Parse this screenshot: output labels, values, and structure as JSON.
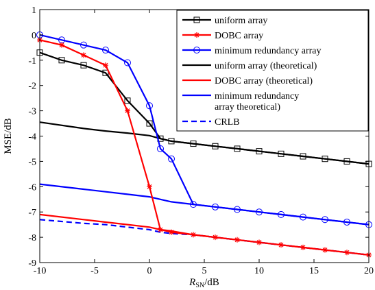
{
  "chart_data": {
    "type": "line",
    "xlabel_main": "R",
    "xlabel_sub": "SN",
    "xlabel_unit": "/dB",
    "ylabel": "MSE/dB",
    "xlim": [
      -10,
      20
    ],
    "ylim": [
      -9,
      1
    ],
    "xticks": [
      -10,
      -5,
      0,
      5,
      10,
      15,
      20
    ],
    "yticks": [
      1,
      0,
      -1,
      -2,
      -3,
      -4,
      -5,
      -6,
      -7,
      -8,
      -9
    ],
    "grid": false,
    "legend_position": "top-right",
    "series": [
      {
        "name": "uniform array",
        "color": "#000000",
        "marker": "square",
        "dash": "solid",
        "x": [
          -10,
          -8,
          -6,
          -4,
          -2,
          0,
          1,
          2,
          4,
          6,
          8,
          10,
          12,
          14,
          16,
          18,
          20
        ],
        "y": [
          -0.7,
          -1.0,
          -1.2,
          -1.5,
          -2.6,
          -3.5,
          -4.1,
          -4.2,
          -4.3,
          -4.4,
          -4.5,
          -4.6,
          -4.7,
          -4.8,
          -4.9,
          -5.0,
          -5.1
        ]
      },
      {
        "name": "DOBC array",
        "color": "#ff0000",
        "marker": "star",
        "dash": "solid",
        "x": [
          -10,
          -8,
          -6,
          -4,
          -2,
          0,
          1,
          2,
          4,
          6,
          8,
          10,
          12,
          14,
          16,
          18,
          20
        ],
        "y": [
          -0.2,
          -0.4,
          -0.8,
          -1.2,
          -3.0,
          -6.0,
          -7.7,
          -7.8,
          -7.9,
          -8.0,
          -8.1,
          -8.2,
          -8.3,
          -8.4,
          -8.5,
          -8.6,
          -8.7
        ]
      },
      {
        "name": "minimum redundancy array",
        "color": "#0000ff",
        "marker": "circle",
        "dash": "solid",
        "x": [
          -10,
          -8,
          -6,
          -4,
          -2,
          0,
          1,
          2,
          4,
          6,
          8,
          10,
          12,
          14,
          16,
          18,
          20
        ],
        "y": [
          0.0,
          -0.2,
          -0.4,
          -0.6,
          -1.1,
          -2.8,
          -4.5,
          -4.9,
          -6.7,
          -6.8,
          -6.9,
          -7.0,
          -7.1,
          -7.2,
          -7.3,
          -7.4,
          -7.5
        ]
      },
      {
        "name": "uniform array (theoretical)",
        "color": "#000000",
        "marker": "none",
        "dash": "solid",
        "x": [
          -10,
          -6,
          -4,
          -2,
          0,
          1,
          2,
          4,
          6,
          8,
          10,
          12,
          14,
          16,
          18,
          20
        ],
        "y": [
          -3.45,
          -3.7,
          -3.8,
          -3.88,
          -3.98,
          -4.1,
          -4.2,
          -4.3,
          -4.4,
          -4.5,
          -4.6,
          -4.7,
          -4.8,
          -4.9,
          -5.0,
          -5.1
        ]
      },
      {
        "name": "DOBC array (theoretical)",
        "color": "#ff0000",
        "marker": "none",
        "dash": "solid",
        "x": [
          -10,
          -6,
          -4,
          -2,
          0,
          1,
          2,
          4,
          6,
          8,
          10,
          12,
          14,
          16,
          18,
          20
        ],
        "y": [
          -7.1,
          -7.3,
          -7.4,
          -7.5,
          -7.6,
          -7.7,
          -7.75,
          -7.9,
          -8.0,
          -8.1,
          -8.2,
          -8.3,
          -8.4,
          -8.5,
          -8.6,
          -8.7
        ]
      },
      {
        "name": "minimum redundancy array theoretical)",
        "color": "#0000ff",
        "marker": "none",
        "dash": "solid",
        "x": [
          -10,
          -6,
          -4,
          -2,
          0,
          1,
          2,
          4,
          6,
          8,
          10,
          12,
          14,
          16,
          18,
          20
        ],
        "y": [
          -5.9,
          -6.1,
          -6.2,
          -6.3,
          -6.4,
          -6.5,
          -6.6,
          -6.7,
          -6.8,
          -6.9,
          -7.0,
          -7.1,
          -7.2,
          -7.3,
          -7.4,
          -7.5
        ]
      },
      {
        "name": "CRLB",
        "color": "#0000ff",
        "marker": "none",
        "dash": "dashed",
        "x": [
          -10,
          -6,
          -4,
          -2,
          0,
          1,
          2,
          4,
          6,
          8,
          10,
          12,
          14,
          16,
          18,
          20
        ],
        "y": [
          -7.3,
          -7.45,
          -7.5,
          -7.6,
          -7.7,
          -7.8,
          -7.85,
          -7.9,
          -8.0,
          -8.1,
          -8.2,
          -8.3,
          -8.4,
          -8.5,
          -8.6,
          -8.7
        ]
      }
    ],
    "legend": [
      {
        "lines": [
          "uniform array"
        ],
        "series_index": 0
      },
      {
        "lines": [
          "DOBC array"
        ],
        "series_index": 1
      },
      {
        "lines": [
          "minimum redundancy array"
        ],
        "series_index": 2
      },
      {
        "lines": [
          "uniform array (theoretical)"
        ],
        "series_index": 3
      },
      {
        "lines": [
          "DOBC array (theoretical)"
        ],
        "series_index": 4
      },
      {
        "lines": [
          "minimum redundancy",
          "array theoretical)"
        ],
        "series_index": 5
      },
      {
        "lines": [
          "CRLB"
        ],
        "series_index": 6
      }
    ]
  }
}
